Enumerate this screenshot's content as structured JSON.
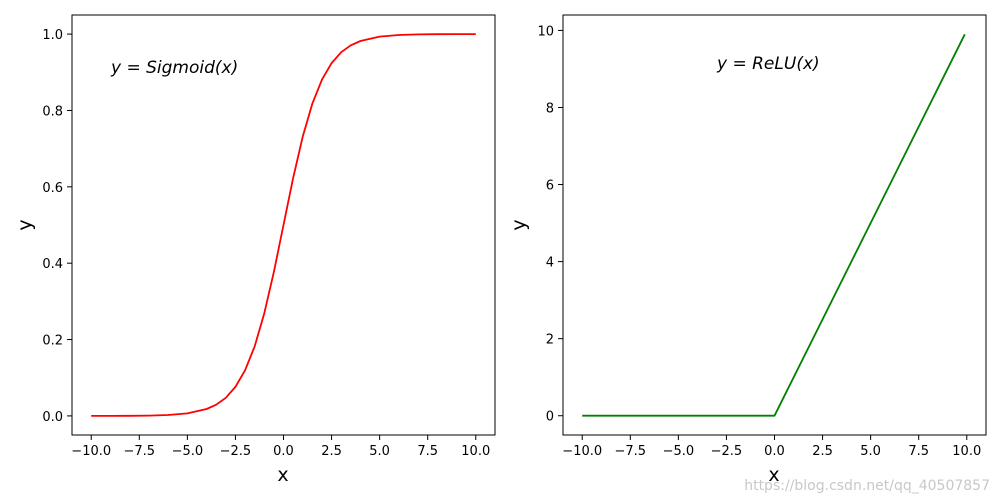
{
  "chart_data": [
    {
      "type": "line",
      "function": "sigmoid",
      "xlabel": "x",
      "ylabel": "y",
      "annotation": {
        "prefix": "y = ",
        "name": "Sigmoid",
        "suffix": "(x)"
      },
      "xlim": [
        -11.0,
        11.0
      ],
      "ylim": [
        -0.05,
        1.05
      ],
      "xticks": [
        -10.0,
        -7.5,
        -5.0,
        -2.5,
        0.0,
        2.5,
        5.0,
        7.5,
        10.0
      ],
      "xtick_labels": [
        "−10.0",
        "−7.5",
        "−5.0",
        "−2.5",
        "0.0",
        "2.5",
        "5.0",
        "7.5",
        "10.0"
      ],
      "yticks": [
        0.0,
        0.2,
        0.4,
        0.6,
        0.8,
        1.0
      ],
      "ytick_labels": [
        "0.0",
        "0.2",
        "0.4",
        "0.6",
        "0.8",
        "1.0"
      ],
      "grid": false,
      "series": [
        {
          "color": "#ff0000",
          "x": [
            -10,
            -9,
            -8,
            -7,
            -6,
            -5,
            -4,
            -3.5,
            -3,
            -2.5,
            -2,
            -1.5,
            -1,
            -0.5,
            0,
            0.5,
            1,
            1.5,
            2,
            2.5,
            3,
            3.5,
            4,
            5,
            6,
            7,
            8,
            9,
            10
          ],
          "y": [
            4.54e-05,
            0.000123,
            0.000335,
            0.000911,
            0.00247,
            0.00669,
            0.018,
            0.0293,
            0.0474,
            0.0759,
            0.1192,
            0.1824,
            0.2689,
            0.3775,
            0.5,
            0.6225,
            0.7311,
            0.8176,
            0.8808,
            0.9241,
            0.9526,
            0.9707,
            0.982,
            0.9933,
            0.9975,
            0.9991,
            0.9997,
            0.9999,
            1.0
          ]
        }
      ]
    },
    {
      "type": "line",
      "function": "relu",
      "xlabel": "x",
      "ylabel": "y",
      "annotation": {
        "prefix": "y = ",
        "name": "ReLU",
        "suffix": "(x)"
      },
      "xlim": [
        -11.0,
        11.0
      ],
      "ylim": [
        -0.5,
        10.4
      ],
      "xticks": [
        -10.0,
        -7.5,
        -5.0,
        -2.5,
        0.0,
        2.5,
        5.0,
        7.5,
        10.0
      ],
      "xtick_labels": [
        "−10.0",
        "−7.5",
        "−5.0",
        "−2.5",
        "0.0",
        "2.5",
        "5.0",
        "7.5",
        "10.0"
      ],
      "yticks": [
        0,
        2,
        4,
        6,
        8,
        10
      ],
      "ytick_labels": [
        "0",
        "2",
        "4",
        "6",
        "8",
        "10"
      ],
      "grid": false,
      "series": [
        {
          "color": "#008000",
          "x": [
            -10,
            0,
            9.9
          ],
          "y": [
            0,
            0,
            9.9
          ]
        }
      ]
    }
  ],
  "watermark": "https://blog.csdn.net/qq_40507857"
}
